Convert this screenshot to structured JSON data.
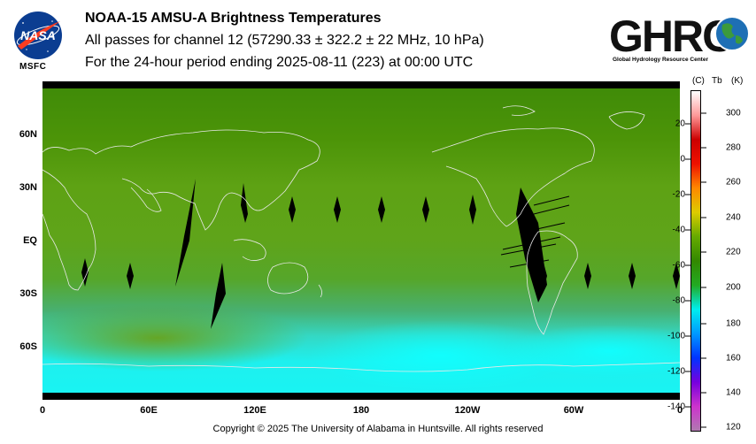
{
  "header": {
    "title": "NOAA-15 AMSU-A Brightness Temperatures",
    "subtitle": "All passes for channel 12 (57290.33 ± 322.2 ± 22 MHz, 10 hPa)",
    "period": "For the 24-hour period ending 2025-08-11 (223) at 00:00 UTC"
  },
  "logos": {
    "nasa_text": "NASA",
    "msfc_text": "MSFC",
    "ghrc_text": "GHRC",
    "ghrc_subtitle": "Global Hydrology Resource Center"
  },
  "map": {
    "lon_labels": [
      "0",
      "60E",
      "120E",
      "180",
      "120W",
      "60W",
      "0"
    ],
    "lat_labels": [
      "60N",
      "30N",
      "EQ",
      "30S",
      "60S"
    ],
    "projection": "equirectangular",
    "lon_range": [
      0,
      360
    ],
    "lat_range": [
      -90,
      90
    ]
  },
  "colorbar": {
    "header_c": "(C)",
    "header_tb": "Tb",
    "header_k": "(K)",
    "celsius_ticks": [
      "20",
      "0",
      "-20",
      "-40",
      "-60",
      "-80",
      "-100",
      "-120",
      "-140"
    ],
    "kelvin_ticks": [
      "300",
      "280",
      "260",
      "240",
      "220",
      "200",
      "180",
      "160",
      "140",
      "120"
    ],
    "kelvin_range": [
      120,
      310
    ],
    "colors": [
      "#b07ab0",
      "#cc33cc",
      "#7700dd",
      "#0033ff",
      "#0099ff",
      "#00eeee",
      "#22aa22",
      "#338800",
      "#66aa00",
      "#ddcc00",
      "#ff8800",
      "#ee1100",
      "#cc0000",
      "#ff9999",
      "#ffffff"
    ]
  },
  "footer": {
    "copyright": "Copyright © 2025 The University of Alabama in Huntsville.  All rights reserved"
  }
}
